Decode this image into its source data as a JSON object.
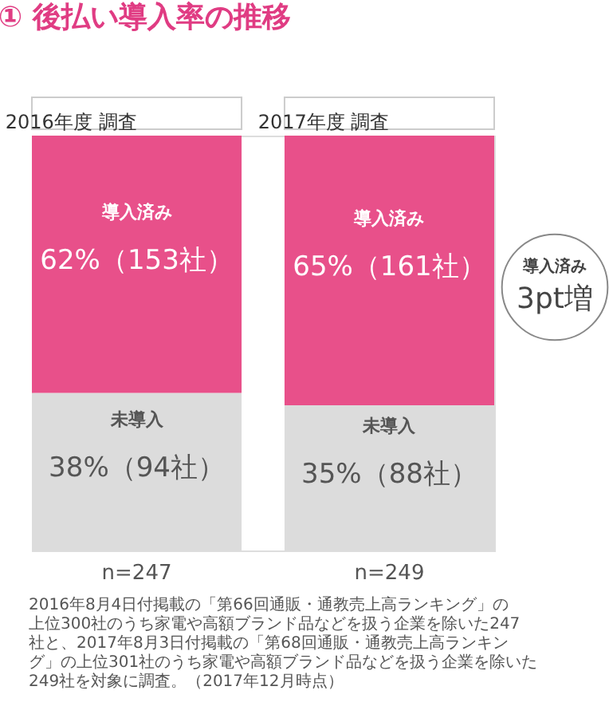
{
  "chart_data": {
    "type": "bar",
    "stacked": true,
    "title": "① 後払い導入率の推移",
    "categories": [
      "2016年度 調査",
      "2017年度 調査"
    ],
    "series": [
      {
        "name": "未導入",
        "color": "#dcdcdc",
        "values": [
          38,
          35
        ],
        "value_labels": [
          "38%（94社）",
          "35%（88社）"
        ]
      },
      {
        "name": "導入済み",
        "color": "#e8508a",
        "values": [
          62,
          65
        ],
        "value_labels": [
          "62%（153社）",
          "65%（161社）"
        ]
      }
    ],
    "tick_labels": "x",
    "annotations": [
      "導入済み 3pt増",
      "n=247",
      "n=249",
      "2016年8月4日付掲載の「第66回通販・通教売上高ランキング」の上位300社のうち家電や高額ブランド品などを扱う企業を除いた247社と、2017年8月3日付掲載の「第68回通販・通教売上高ランキング」の上位301社のうち家電や高額ブランド品などを扱う企業を除いた249社を対象に調査。（2017年12月時点）"
    ]
  }
}
